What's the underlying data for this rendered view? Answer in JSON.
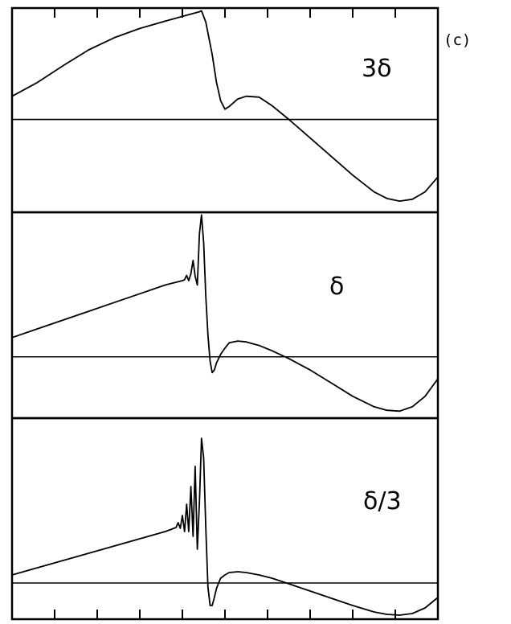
{
  "figure": {
    "label": "(c)"
  },
  "chart_data": [
    {
      "type": "line",
      "annotation": "3δ",
      "xlim": [
        0,
        1
      ],
      "ylim": [
        -1,
        1.2
      ],
      "grid": false,
      "reference_line_y": 0,
      "series": [
        {
          "x": [
            0.0,
            0.06,
            0.12,
            0.18,
            0.24,
            0.3,
            0.36,
            0.4,
            0.44,
            0.445,
            0.455,
            0.47,
            0.48,
            0.49,
            0.5,
            0.51,
            0.53,
            0.55,
            0.58,
            0.61,
            0.65,
            0.7,
            0.75,
            0.8,
            0.85,
            0.88,
            0.91,
            0.94,
            0.97,
            1.0
          ],
          "y": [
            0.25,
            0.4,
            0.58,
            0.75,
            0.88,
            0.98,
            1.06,
            1.11,
            1.16,
            1.17,
            1.05,
            0.7,
            0.4,
            0.2,
            0.11,
            0.14,
            0.22,
            0.25,
            0.24,
            0.15,
            0.0,
            -0.2,
            -0.4,
            -0.6,
            -0.78,
            -0.85,
            -0.88,
            -0.86,
            -0.78,
            -0.62
          ]
        }
      ]
    },
    {
      "type": "line",
      "annotation": "δ",
      "xlim": [
        0,
        1
      ],
      "ylim": [
        -0.7,
        1.65
      ],
      "grid": false,
      "reference_line_y": 0,
      "series": [
        {
          "x": [
            0.0,
            0.06,
            0.12,
            0.18,
            0.24,
            0.3,
            0.36,
            0.4,
            0.405,
            0.41,
            0.415,
            0.42,
            0.425,
            0.43,
            0.435,
            0.44,
            0.445,
            0.45,
            0.455,
            0.46,
            0.465,
            0.47,
            0.475,
            0.48,
            0.485,
            0.49,
            0.5,
            0.51,
            0.53,
            0.55,
            0.58,
            0.61,
            0.65,
            0.7,
            0.75,
            0.8,
            0.85,
            0.88,
            0.91,
            0.94,
            0.97,
            1.0
          ],
          "y": [
            0.22,
            0.32,
            0.42,
            0.52,
            0.62,
            0.72,
            0.82,
            0.87,
            0.88,
            0.93,
            0.87,
            0.95,
            1.1,
            0.92,
            0.82,
            1.4,
            1.62,
            1.3,
            0.7,
            0.25,
            -0.05,
            -0.18,
            -0.15,
            -0.07,
            -0.02,
            0.03,
            0.1,
            0.16,
            0.18,
            0.17,
            0.13,
            0.07,
            -0.02,
            -0.15,
            -0.3,
            -0.45,
            -0.57,
            -0.61,
            -0.62,
            -0.57,
            -0.45,
            -0.25
          ]
        }
      ]
    },
    {
      "type": "line",
      "annotation": "δ/3",
      "xlim": [
        0,
        1
      ],
      "ylim": [
        -0.45,
        2.05
      ],
      "grid": false,
      "reference_line_y": 0,
      "series": [
        {
          "x": [
            0.0,
            0.06,
            0.12,
            0.18,
            0.24,
            0.3,
            0.36,
            0.385,
            0.39,
            0.395,
            0.4,
            0.405,
            0.41,
            0.415,
            0.42,
            0.425,
            0.43,
            0.435,
            0.44,
            0.445,
            0.45,
            0.455,
            0.46,
            0.465,
            0.47,
            0.475,
            0.48,
            0.485,
            0.49,
            0.5,
            0.51,
            0.53,
            0.55,
            0.58,
            0.61,
            0.65,
            0.7,
            0.75,
            0.8,
            0.85,
            0.88,
            0.91,
            0.94,
            0.97,
            1.0
          ],
          "y": [
            0.1,
            0.19,
            0.28,
            0.37,
            0.46,
            0.55,
            0.64,
            0.69,
            0.75,
            0.68,
            0.84,
            0.64,
            0.98,
            0.64,
            1.2,
            0.58,
            1.45,
            0.42,
            1.0,
            1.8,
            1.55,
            0.7,
            -0.05,
            -0.28,
            -0.28,
            -0.18,
            -0.07,
            0.0,
            0.06,
            0.1,
            0.13,
            0.14,
            0.13,
            0.1,
            0.06,
            -0.01,
            -0.1,
            -0.19,
            -0.28,
            -0.36,
            -0.39,
            -0.4,
            -0.38,
            -0.31,
            -0.18
          ]
        }
      ]
    }
  ]
}
